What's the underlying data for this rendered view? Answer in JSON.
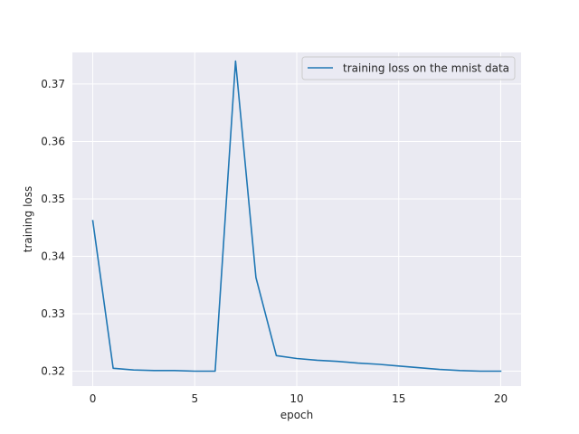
{
  "chart_data": {
    "type": "line",
    "xlabel": "epoch",
    "ylabel": "training loss",
    "xlim": [
      -1,
      21
    ],
    "ylim": [
      0.3174,
      0.3755
    ],
    "xticks": [
      0,
      5,
      10,
      15,
      20
    ],
    "yticks": [
      0.32,
      0.33,
      0.34,
      0.35,
      0.36,
      0.37
    ],
    "xtick_labels": [
      "0",
      "5",
      "10",
      "15",
      "20"
    ],
    "ytick_labels": [
      "0.32",
      "0.33",
      "0.34",
      "0.35",
      "0.36",
      "0.37"
    ],
    "grid": true,
    "legend_position": "top-right",
    "series": [
      {
        "name": "training loss on the mnist data",
        "color": "#1f77b4",
        "x": [
          0,
          1,
          2,
          3,
          4,
          5,
          6,
          7,
          8,
          9,
          10,
          11,
          12,
          13,
          14,
          15,
          16,
          17,
          18,
          19,
          20
        ],
        "y": [
          0.3462,
          0.3205,
          0.3202,
          0.3201,
          0.3201,
          0.32,
          0.32,
          0.374,
          0.3363,
          0.3227,
          0.3222,
          0.3219,
          0.3217,
          0.3214,
          0.3212,
          0.3209,
          0.3206,
          0.3203,
          0.3201,
          0.32,
          0.32
        ]
      }
    ]
  }
}
